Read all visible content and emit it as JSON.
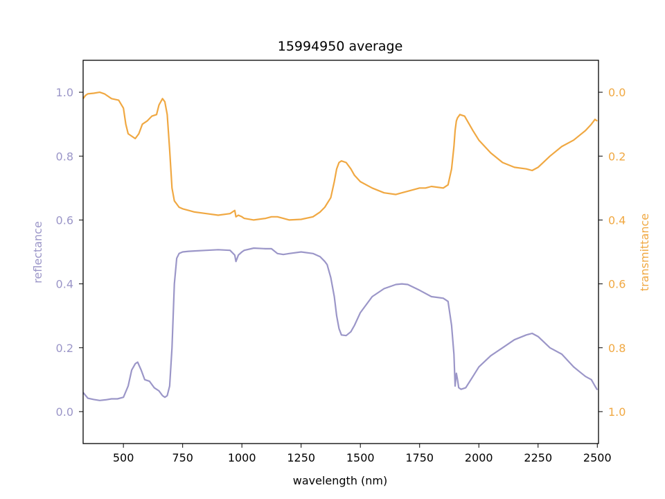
{
  "chart_data": {
    "type": "line",
    "title": "15994950 average",
    "xlabel": "wavelength (nm)",
    "ylabel_left": "reflectance",
    "ylabel_right": "transmittance",
    "xlim": [
      330,
      2505
    ],
    "ylim_left": [
      -0.1,
      1.1
    ],
    "ylim_right": [
      1.1,
      -0.1
    ],
    "right_axis_inverted": true,
    "x_ticks": [
      500,
      750,
      1000,
      1250,
      1500,
      1750,
      2000,
      2250,
      2500
    ],
    "x_tick_labels": [
      "500",
      "750",
      "1000",
      "1250",
      "1500",
      "1750",
      "2000",
      "2250",
      "2500"
    ],
    "y_left_ticks": [
      0.0,
      0.2,
      0.4,
      0.6,
      0.8,
      1.0
    ],
    "y_left_tick_labels": [
      "0.0",
      "0.2",
      "0.4",
      "0.6",
      "0.8",
      "1.0"
    ],
    "y_right_ticks": [
      0.0,
      0.2,
      0.4,
      0.6,
      0.8,
      1.0
    ],
    "y_right_tick_labels": [
      "0.0",
      "0.2",
      "0.4",
      "0.6",
      "0.8",
      "1.0"
    ],
    "grid": false,
    "colors": {
      "reflectance": "#9b96c8",
      "transmittance": "#f0a842",
      "axes": "#000000"
    },
    "series": [
      {
        "axis": "left",
        "color": "#9b96c8",
        "x": [
          330,
          350,
          375,
          400,
          425,
          450,
          475,
          500,
          520,
          535,
          550,
          560,
          575,
          590,
          610,
          630,
          650,
          665,
          675,
          685,
          695,
          705,
          715,
          725,
          735,
          750,
          775,
          800,
          850,
          900,
          950,
          970,
          975,
          985,
          1000,
          1010,
          1050,
          1100,
          1125,
          1150,
          1175,
          1200,
          1250,
          1300,
          1330,
          1350,
          1360,
          1375,
          1390,
          1400,
          1410,
          1420,
          1440,
          1460,
          1475,
          1500,
          1550,
          1600,
          1650,
          1675,
          1700,
          1750,
          1800,
          1850,
          1870,
          1885,
          1895,
          1900,
          1905,
          1910,
          1915,
          1925,
          1945,
          1975,
          2000,
          2050,
          2100,
          2150,
          2200,
          2225,
          2250,
          2300,
          2350,
          2400,
          2425,
          2450,
          2475,
          2490,
          2500
        ],
        "y": [
          0.06,
          0.042,
          0.038,
          0.035,
          0.037,
          0.04,
          0.04,
          0.045,
          0.08,
          0.13,
          0.15,
          0.155,
          0.13,
          0.1,
          0.095,
          0.075,
          0.065,
          0.05,
          0.045,
          0.05,
          0.08,
          0.2,
          0.4,
          0.48,
          0.495,
          0.5,
          0.502,
          0.503,
          0.505,
          0.507,
          0.505,
          0.49,
          0.47,
          0.49,
          0.5,
          0.505,
          0.512,
          0.51,
          0.51,
          0.495,
          0.492,
          0.495,
          0.5,
          0.495,
          0.485,
          0.47,
          0.46,
          0.42,
          0.36,
          0.3,
          0.26,
          0.24,
          0.238,
          0.25,
          0.27,
          0.31,
          0.36,
          0.385,
          0.398,
          0.4,
          0.398,
          0.38,
          0.36,
          0.355,
          0.345,
          0.27,
          0.18,
          0.08,
          0.12,
          0.1,
          0.075,
          0.07,
          0.075,
          0.11,
          0.14,
          0.175,
          0.2,
          0.225,
          0.24,
          0.245,
          0.235,
          0.2,
          0.18,
          0.14,
          0.125,
          0.11,
          0.1,
          0.08,
          0.068
        ]
      },
      {
        "axis": "right",
        "color": "#f0a842",
        "x": [
          330,
          340,
          350,
          375,
          400,
          420,
          450,
          480,
          500,
          510,
          520,
          540,
          550,
          565,
          580,
          600,
          620,
          640,
          650,
          665,
          675,
          685,
          695,
          705,
          715,
          725,
          735,
          750,
          775,
          800,
          850,
          900,
          950,
          970,
          975,
          985,
          1000,
          1010,
          1050,
          1100,
          1125,
          1150,
          1175,
          1200,
          1250,
          1300,
          1330,
          1350,
          1375,
          1390,
          1400,
          1410,
          1420,
          1440,
          1460,
          1475,
          1500,
          1550,
          1600,
          1650,
          1675,
          1700,
          1750,
          1775,
          1800,
          1850,
          1870,
          1885,
          1895,
          1900,
          1905,
          1910,
          1920,
          1940,
          1975,
          2000,
          2050,
          2100,
          2150,
          2200,
          2225,
          2250,
          2300,
          2350,
          2400,
          2425,
          2450,
          2475,
          2490,
          2500
        ],
        "y": [
          0.02,
          0.01,
          0.005,
          0.003,
          0.0,
          0.005,
          0.02,
          0.025,
          0.05,
          0.1,
          0.13,
          0.14,
          0.145,
          0.13,
          0.1,
          0.09,
          0.075,
          0.07,
          0.04,
          0.02,
          0.03,
          0.07,
          0.18,
          0.3,
          0.34,
          0.35,
          0.36,
          0.365,
          0.37,
          0.375,
          0.38,
          0.385,
          0.38,
          0.37,
          0.39,
          0.385,
          0.39,
          0.395,
          0.4,
          0.395,
          0.39,
          0.39,
          0.395,
          0.4,
          0.398,
          0.39,
          0.375,
          0.36,
          0.33,
          0.28,
          0.24,
          0.22,
          0.215,
          0.22,
          0.24,
          0.26,
          0.28,
          0.3,
          0.315,
          0.32,
          0.315,
          0.31,
          0.3,
          0.3,
          0.295,
          0.3,
          0.29,
          0.24,
          0.17,
          0.12,
          0.09,
          0.08,
          0.07,
          0.075,
          0.12,
          0.15,
          0.19,
          0.22,
          0.235,
          0.24,
          0.245,
          0.235,
          0.2,
          0.17,
          0.15,
          0.135,
          0.12,
          0.1,
          0.085,
          0.09
        ]
      }
    ]
  }
}
